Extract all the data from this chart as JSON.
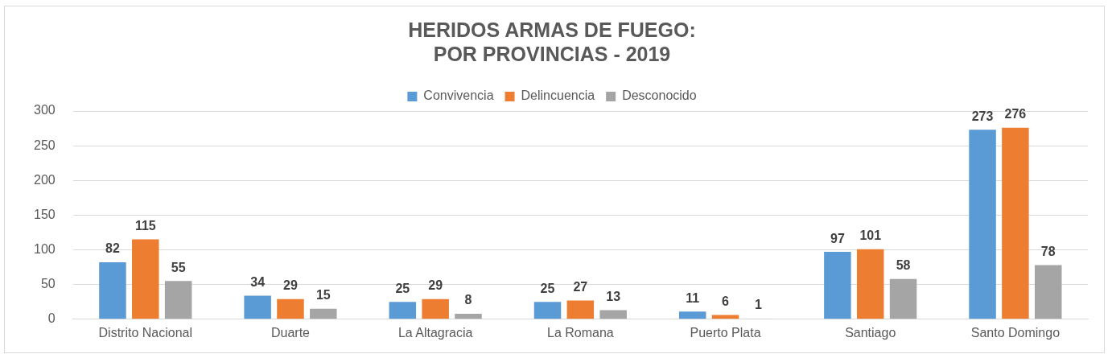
{
  "chart_data": {
    "type": "bar",
    "title": "HERIDOS ARMAS DE FUEGO:\nPOR PROVINCIAS - 2019",
    "categories": [
      "Distrito Nacional",
      "Duarte",
      "La Altagracia",
      "La Romana",
      "Puerto Plata",
      "Santiago",
      "Santo Domingo"
    ],
    "series": [
      {
        "name": "Convivencia",
        "color": "#5b9bd5",
        "values": [
          82,
          34,
          25,
          25,
          11,
          97,
          273
        ]
      },
      {
        "name": "Delincuencia",
        "color": "#ed7d31",
        "values": [
          115,
          29,
          29,
          27,
          6,
          101,
          276
        ]
      },
      {
        "name": "Desconocido",
        "color": "#a5a5a5",
        "values": [
          55,
          15,
          8,
          13,
          1,
          58,
          78
        ]
      }
    ],
    "ylim": [
      0,
      300
    ],
    "yticks": [
      0,
      50,
      100,
      150,
      200,
      250,
      300
    ],
    "grid": "y",
    "legend": "top",
    "data_labels": true
  }
}
